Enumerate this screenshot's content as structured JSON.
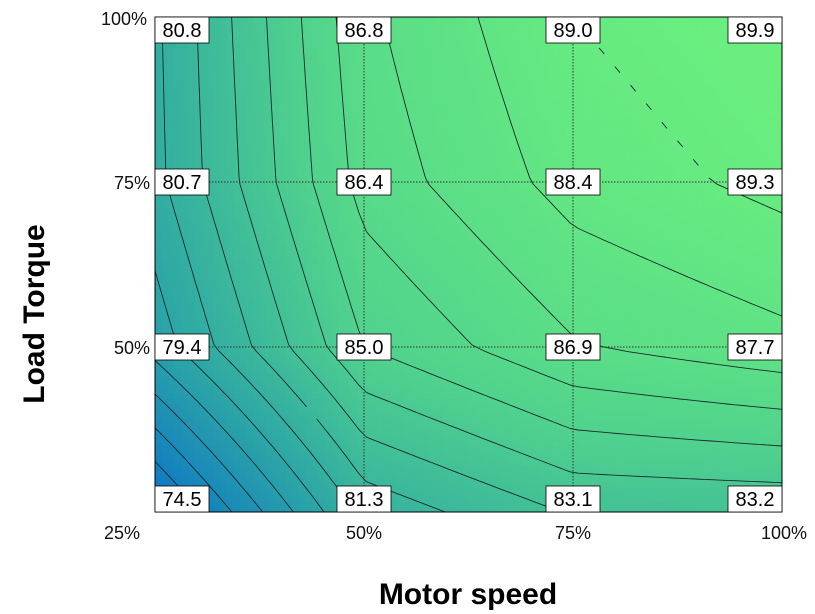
{
  "chart_data": {
    "type": "heatmap",
    "title": "",
    "xlabel": "Motor speed",
    "ylabel": "Load Torque",
    "x_ticks": [
      "25%",
      "50%",
      "75%",
      "100%"
    ],
    "y_ticks": [
      "25%",
      "50%",
      "75%",
      "100%"
    ],
    "x": [
      25,
      50,
      75,
      100
    ],
    "y": [
      25,
      50,
      75,
      100
    ],
    "values": [
      [
        74.5,
        81.3,
        83.1,
        83.2
      ],
      [
        79.4,
        85.0,
        86.9,
        87.7
      ],
      [
        80.7,
        86.4,
        88.4,
        89.3
      ],
      [
        80.8,
        86.8,
        89.0,
        89.9
      ]
    ],
    "value_labels": [
      [
        "74.5",
        "81.3",
        "83.1",
        "83.2"
      ],
      [
        "79.4",
        "85.0",
        "86.9",
        "87.7"
      ],
      [
        "80.7",
        "86.4",
        "88.4",
        "89.3"
      ],
      [
        "80.8",
        "86.8",
        "89.0",
        "89.9"
      ]
    ],
    "colormap": [
      "#0b72c9",
      "#2aa3a8",
      "#4fd08e",
      "#6bf07e"
    ],
    "contour_lines": true,
    "grid": true
  }
}
